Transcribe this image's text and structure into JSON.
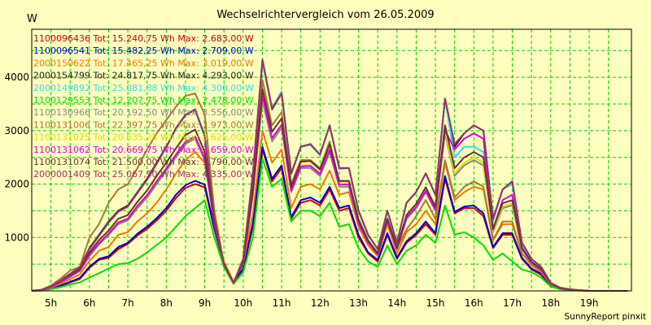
{
  "chart_data": {
    "type": "line",
    "title": "Wechselrichtervergleich vom 26.05.2009",
    "ylabel": "W",
    "xlabel": "",
    "footer": "SunnyReport pinxit",
    "grid": true,
    "legend_position": "top-left",
    "xlim": [
      4.5,
      20.1
    ],
    "ylim": [
      0,
      4900
    ],
    "x_ticks": [
      5,
      6,
      7,
      8,
      9,
      10,
      11,
      12,
      13,
      14,
      15,
      16,
      17,
      18,
      19
    ],
    "x_tick_labels": [
      "5h",
      "6h",
      "7h",
      "8h",
      "9h",
      "10h",
      "11h",
      "12h",
      "13h",
      "14h",
      "15h",
      "16h",
      "17h",
      "18h",
      "19h"
    ],
    "y_ticks": [
      1000,
      2000,
      3000,
      4000
    ],
    "y_tick_labels": [
      "1000",
      "2000",
      "3000",
      "4000"
    ],
    "x": [
      4.5,
      4.75,
      5.0,
      5.25,
      5.5,
      5.75,
      6.0,
      6.25,
      6.5,
      6.75,
      7.0,
      7.25,
      7.5,
      7.75,
      8.0,
      8.25,
      8.5,
      8.75,
      9.0,
      9.25,
      9.5,
      9.75,
      10.0,
      10.25,
      10.5,
      10.75,
      11.0,
      11.25,
      11.5,
      11.75,
      12.0,
      12.25,
      12.5,
      12.75,
      13.0,
      13.25,
      13.5,
      13.75,
      14.0,
      14.25,
      14.5,
      14.75,
      15.0,
      15.25,
      15.5,
      15.75,
      16.0,
      16.25,
      16.5,
      16.75,
      17.0,
      17.25,
      17.5,
      17.75,
      18.0,
      18.25,
      18.5,
      18.75,
      19.0,
      19.25,
      19.5,
      19.75,
      20.0
    ],
    "series": [
      {
        "name": "1100096436 Tot: 15.240,75 Wh Max: 2.683,00 W",
        "color": "#cc0000",
        "values": [
          0,
          10,
          40,
          90,
          160,
          220,
          430,
          580,
          620,
          780,
          880,
          1040,
          1160,
          1320,
          1500,
          1740,
          1930,
          2000,
          1940,
          1150,
          500,
          150,
          400,
          1200,
          2650,
          2050,
          2300,
          1350,
          1650,
          1700,
          1600,
          1900,
          1500,
          1550,
          1000,
          700,
          550,
          1050,
          600,
          900,
          1050,
          1250,
          1050,
          2100,
          1450,
          1550,
          1550,
          1400,
          800,
          1050,
          1050,
          600,
          400,
          300,
          100,
          40,
          20,
          10,
          0,
          0,
          0,
          0,
          0
        ]
      },
      {
        "name": "1100096541 Tot: 15.482,25 Wh Max: 2.709,00 W",
        "color": "#0000cc",
        "values": [
          0,
          10,
          45,
          100,
          170,
          240,
          450,
          600,
          650,
          820,
          900,
          1070,
          1200,
          1360,
          1550,
          1800,
          1980,
          2060,
          1990,
          1180,
          520,
          160,
          420,
          1250,
          2700,
          2100,
          2350,
          1380,
          1700,
          1750,
          1650,
          1950,
          1550,
          1600,
          1050,
          720,
          580,
          1080,
          620,
          930,
          1080,
          1300,
          1080,
          2150,
          1480,
          1580,
          1600,
          1450,
          820,
          1080,
          1080,
          620,
          420,
          320,
          110,
          40,
          20,
          10,
          0,
          0,
          0,
          0,
          0
        ]
      },
      {
        "name": "2000150622 Tot: 17.465,25 Wh Max: 3.019,00 W",
        "color": "#ee7700",
        "values": [
          0,
          15,
          60,
          130,
          220,
          310,
          560,
          750,
          820,
          1050,
          1100,
          1300,
          1450,
          1650,
          1900,
          2200,
          2450,
          2600,
          2400,
          1300,
          550,
          170,
          500,
          1450,
          3000,
          2400,
          2650,
          1550,
          1950,
          2000,
          1900,
          2250,
          1800,
          1850,
          1200,
          850,
          650,
          1250,
          700,
          1100,
          1250,
          1500,
          1250,
          2400,
          1700,
          1850,
          1950,
          1900,
          950,
          1250,
          1250,
          700,
          480,
          350,
          120,
          50,
          20,
          10,
          0,
          0,
          0,
          0,
          0
        ]
      },
      {
        "name": "2000154799 Tot: 24.817,75 Wh Max: 4.293,00 W",
        "color": "#222222",
        "values": [
          0,
          20,
          90,
          200,
          320,
          450,
          800,
          1050,
          1300,
          1500,
          1600,
          1850,
          2100,
          2400,
          2700,
          3050,
          3300,
          3400,
          2900,
          1400,
          500,
          150,
          600,
          2200,
          4300,
          3400,
          3700,
          2200,
          2700,
          2750,
          2550,
          3100,
          2300,
          2300,
          1500,
          1050,
          780,
          1500,
          900,
          1650,
          1850,
          2200,
          1800,
          3600,
          2700,
          2950,
          3100,
          3000,
          1350,
          1900,
          2050,
          900,
          600,
          450,
          150,
          60,
          30,
          10,
          0,
          0,
          0,
          0,
          0
        ]
      },
      {
        "name": "2000149892 Tot: 25.081,88 Wh Max: 4.300,00 W",
        "color": "#33dddd",
        "values": [
          0,
          20,
          85,
          190,
          310,
          440,
          780,
          1030,
          1280,
          1480,
          1580,
          1830,
          2080,
          2380,
          2690,
          3040,
          3290,
          3390,
          2890,
          1380,
          490,
          150,
          590,
          2180,
          4300,
          3420,
          3740,
          2180,
          2700,
          2730,
          2540,
          3100,
          2280,
          2300,
          1480,
          1040,
          770,
          1480,
          890,
          1650,
          1840,
          2200,
          1790,
          3580,
          2500,
          2700,
          2700,
          2600,
          1300,
          1900,
          2000,
          880,
          590,
          440,
          150,
          60,
          30,
          10,
          0,
          0,
          0,
          0,
          0
        ]
      },
      {
        "name": "1100129553 Tot: 12.207,75 Wh Max: 2.478,00 W",
        "color": "#00dd00",
        "values": [
          0,
          5,
          30,
          70,
          120,
          160,
          250,
          330,
          420,
          500,
          520,
          600,
          720,
          860,
          1000,
          1200,
          1400,
          1550,
          1700,
          1000,
          450,
          130,
          350,
          1000,
          2480,
          1950,
          2100,
          1300,
          1500,
          1500,
          1400,
          1650,
          1200,
          1250,
          800,
          550,
          450,
          850,
          500,
          750,
          850,
          1050,
          900,
          1600,
          1050,
          1100,
          1000,
          850,
          580,
          700,
          550,
          400,
          350,
          250,
          80,
          30,
          15,
          5,
          0,
          0,
          0,
          0,
          0
        ]
      },
      {
        "name": "1100130966 Tot: 20.192,50 Wh Max: 3.556,00 W",
        "color": "#888888",
        "values": [
          0,
          15,
          70,
          160,
          260,
          370,
          650,
          870,
          1050,
          1250,
          1320,
          1550,
          1750,
          2000,
          2250,
          2500,
          2750,
          2850,
          2450,
          1250,
          500,
          150,
          520,
          1800,
          3550,
          2800,
          3050,
          1850,
          2300,
          2300,
          2150,
          2600,
          1950,
          1950,
          1250,
          900,
          680,
          1300,
          780,
          1350,
          1550,
          1850,
          1500,
          2950,
          2150,
          2350,
          2450,
          2350,
          1100,
          1550,
          1600,
          780,
          520,
          390,
          130,
          50,
          25,
          10,
          0,
          0,
          0,
          0,
          0
        ]
      },
      {
        "name": "1100131006 Tot: 22.397,75 Wh Max: 3.973,00 W",
        "color": "#aa7733",
        "values": [
          0,
          20,
          100,
          230,
          380,
          450,
          1000,
          1250,
          1650,
          1900,
          2000,
          2300,
          2650,
          2950,
          3200,
          3450,
          3650,
          3700,
          3300,
          1500,
          500,
          150,
          550,
          2000,
          3950,
          3100,
          3350,
          2000,
          2450,
          2450,
          2300,
          2800,
          2050,
          2050,
          1350,
          950,
          700,
          1350,
          800,
          1150,
          1400,
          1700,
          1350,
          2450,
          1750,
          1950,
          2050,
          1950,
          950,
          1300,
          1300,
          700,
          500,
          380,
          130,
          50,
          20,
          10,
          0,
          0,
          0,
          0,
          0
        ]
      },
      {
        "name": "1100131025 Tot: 20.635,25 Wh Max: 3.625,00 W",
        "color": "#dddd00",
        "values": [
          0,
          15,
          75,
          170,
          280,
          390,
          690,
          900,
          1080,
          1290,
          1360,
          1600,
          1800,
          2060,
          2300,
          2560,
          2800,
          2900,
          2500,
          1270,
          510,
          150,
          530,
          1850,
          3620,
          2850,
          3100,
          1900,
          2350,
          2350,
          2200,
          2650,
          2000,
          2000,
          1280,
          920,
          690,
          1320,
          790,
          1380,
          1580,
          1880,
          1530,
          3000,
          2200,
          2400,
          2500,
          2400,
          1120,
          1580,
          1640,
          790,
          530,
          400,
          135,
          50,
          25,
          10,
          0,
          0,
          0,
          0,
          0
        ]
      },
      {
        "name": "1100131062 Tot: 20.669,75 Wh Max: 3.659,00 W",
        "color": "#dd00dd",
        "values": [
          0,
          15,
          70,
          165,
          275,
          385,
          680,
          890,
          1070,
          1280,
          1350,
          1590,
          1790,
          2050,
          2290,
          2550,
          2790,
          2890,
          2480,
          1260,
          505,
          150,
          525,
          1830,
          3650,
          2860,
          3110,
          1880,
          2330,
          2340,
          2190,
          2640,
          1990,
          1990,
          1270,
          910,
          685,
          1310,
          785,
          1370,
          1570,
          1870,
          1520,
          3010,
          2650,
          2850,
          2950,
          2850,
          1150,
          1700,
          1800,
          790,
          530,
          400,
          135,
          50,
          25,
          10,
          0,
          0,
          0,
          0,
          0
        ]
      },
      {
        "name": "1100131074 Tot: 21.500,00 Wh Max: 3.790,00 W",
        "color": "#663333",
        "values": [
          0,
          18,
          80,
          180,
          300,
          410,
          720,
          950,
          1130,
          1350,
          1420,
          1670,
          1880,
          2150,
          2400,
          2670,
          2920,
          3020,
          2600,
          1300,
          510,
          150,
          540,
          1900,
          3780,
          2980,
          3230,
          1950,
          2420,
          2430,
          2270,
          2740,
          2060,
          2060,
          1320,
          940,
          705,
          1350,
          810,
          1420,
          1630,
          1940,
          1580,
          3100,
          2300,
          2500,
          2600,
          2500,
          1160,
          1640,
          1700,
          810,
          545,
          410,
          140,
          50,
          25,
          10,
          0,
          0,
          0,
          0,
          0
        ]
      },
      {
        "name": "2000001409 Tot: 25.067,50 Wh Max: 4.335,00 W",
        "color": "#993366",
        "values": [
          0,
          20,
          85,
          190,
          310,
          440,
          780,
          1030,
          1280,
          1480,
          1580,
          1830,
          2080,
          2380,
          2690,
          3040,
          3290,
          3390,
          2890,
          1380,
          490,
          150,
          590,
          2180,
          4335,
          3420,
          3700,
          2200,
          2700,
          2750,
          2550,
          3100,
          2300,
          2300,
          1500,
          1050,
          780,
          1500,
          900,
          1650,
          1850,
          2200,
          1800,
          3600,
          2750,
          2950,
          3100,
          3000,
          1350,
          1900,
          2050,
          900,
          600,
          450,
          150,
          60,
          30,
          10,
          0,
          0,
          0,
          0,
          0
        ]
      }
    ]
  }
}
